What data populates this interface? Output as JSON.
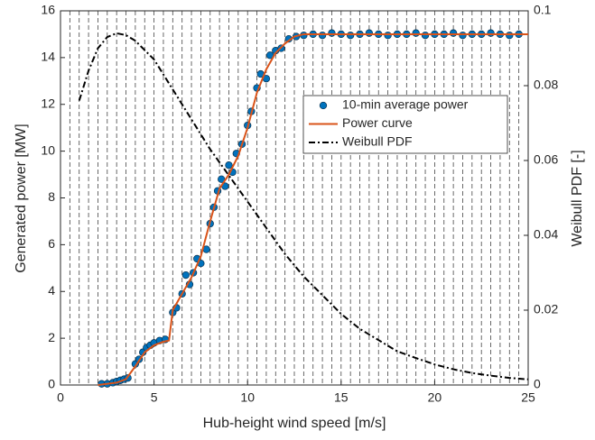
{
  "chart_data": {
    "type": "line",
    "xlabel": "Hub-height wind speed [m/s]",
    "ylabel": "Generated power [MW]",
    "y2label": "Weibull PDF [-]",
    "xlim": [
      0,
      25
    ],
    "ylim": [
      0,
      16
    ],
    "y2lim": [
      0,
      0.1
    ],
    "xticks": [
      0,
      5,
      10,
      15,
      20,
      25
    ],
    "yticks": [
      0,
      2,
      4,
      6,
      8,
      10,
      12,
      14,
      16
    ],
    "y2ticks": [
      0,
      0.02,
      0.04,
      0.06,
      0.08,
      0.1
    ],
    "bin_edges": [
      0.5,
      1,
      1.5,
      2,
      2.5,
      3,
      3.5,
      4,
      4.5,
      5,
      5.5,
      6,
      6.5,
      7,
      7.5,
      8,
      8.5,
      9,
      9.5,
      10,
      10.5,
      11,
      11.5,
      12,
      12.5,
      13,
      13.5,
      14,
      14.5,
      15,
      15.5,
      16,
      16.5,
      17,
      17.5,
      18,
      18.5,
      19,
      19.5,
      20,
      20.5,
      21,
      21.5,
      22,
      22.5,
      23,
      23.5,
      24,
      24.5
    ],
    "legend": "upper right",
    "series": [
      {
        "name": "10-min average power",
        "type": "scatter",
        "color": "#0072bd",
        "x": [
          2.2,
          2.5,
          2.8,
          3.0,
          3.2,
          3.4,
          3.6,
          4.0,
          4.2,
          4.4,
          4.6,
          4.8,
          5.0,
          5.3,
          5.6,
          6.0,
          6.2,
          6.5,
          6.7,
          6.9,
          7.1,
          7.3,
          7.5,
          7.8,
          8.0,
          8.2,
          8.4,
          8.6,
          8.8,
          9.0,
          9.2,
          9.4,
          9.7,
          10.0,
          10.2,
          10.5,
          10.7,
          11.0,
          11.2,
          11.5,
          11.8,
          12.2,
          12.6,
          13.0,
          13.5,
          14,
          14.5,
          15,
          15.5,
          16,
          16.5,
          17,
          17.5,
          18,
          18.5,
          19,
          19.5,
          20,
          20.5,
          21,
          21.5,
          22,
          22.5,
          23,
          23.5,
          24,
          24.5
        ],
        "values": [
          0.05,
          0.05,
          0.1,
          0.15,
          0.2,
          0.25,
          0.3,
          0.9,
          1.1,
          1.4,
          1.6,
          1.7,
          1.8,
          1.9,
          1.95,
          3.1,
          3.3,
          3.9,
          4.7,
          4.3,
          4.8,
          5.4,
          5.2,
          5.8,
          6.9,
          7.6,
          8.3,
          8.8,
          8.5,
          9.4,
          9.1,
          9.9,
          10.3,
          11.1,
          11.7,
          12.7,
          13.3,
          13.1,
          14.1,
          14.3,
          14.4,
          14.8,
          14.9,
          14.95,
          15,
          14.95,
          15.05,
          15,
          14.95,
          15,
          15.05,
          15,
          14.95,
          15,
          15,
          15.05,
          14.95,
          15,
          15,
          15.05,
          14.95,
          15,
          15,
          15.05,
          15,
          14.95,
          15
        ]
      },
      {
        "name": "Power curve",
        "type": "line",
        "color": "#d95319",
        "dash": "none",
        "x": [
          2,
          3,
          3.5,
          4,
          4.5,
          5,
          5.5,
          5.8,
          6,
          6.5,
          7,
          7.5,
          8,
          8.5,
          9,
          9.5,
          10,
          10.5,
          11,
          11.5,
          12,
          12.5,
          13,
          25
        ],
        "values": [
          0,
          0.1,
          0.25,
          0.8,
          1.4,
          1.7,
          1.85,
          1.9,
          3.2,
          3.9,
          4.6,
          5.5,
          7.0,
          8.4,
          9.0,
          9.8,
          11.0,
          12.5,
          13.5,
          14.2,
          14.6,
          14.9,
          15,
          15
        ]
      },
      {
        "name": "Weibull PDF",
        "type": "line",
        "color": "#000000",
        "dash": "7 3 2 3",
        "axis": "y2",
        "x": [
          1,
          1.5,
          2,
          2.5,
          3,
          3.5,
          4,
          5,
          6,
          7,
          8,
          9,
          10,
          11,
          12,
          13,
          14,
          15,
          16,
          17,
          18,
          19,
          20,
          21,
          22,
          23,
          24,
          25
        ],
        "values": [
          0.076,
          0.084,
          0.09,
          0.093,
          0.094,
          0.0935,
          0.092,
          0.087,
          0.079,
          0.071,
          0.063,
          0.056,
          0.049,
          0.042,
          0.035,
          0.029,
          0.024,
          0.019,
          0.015,
          0.012,
          0.009,
          0.0072,
          0.0055,
          0.0042,
          0.0032,
          0.0025,
          0.0019,
          0.0015
        ]
      }
    ]
  }
}
